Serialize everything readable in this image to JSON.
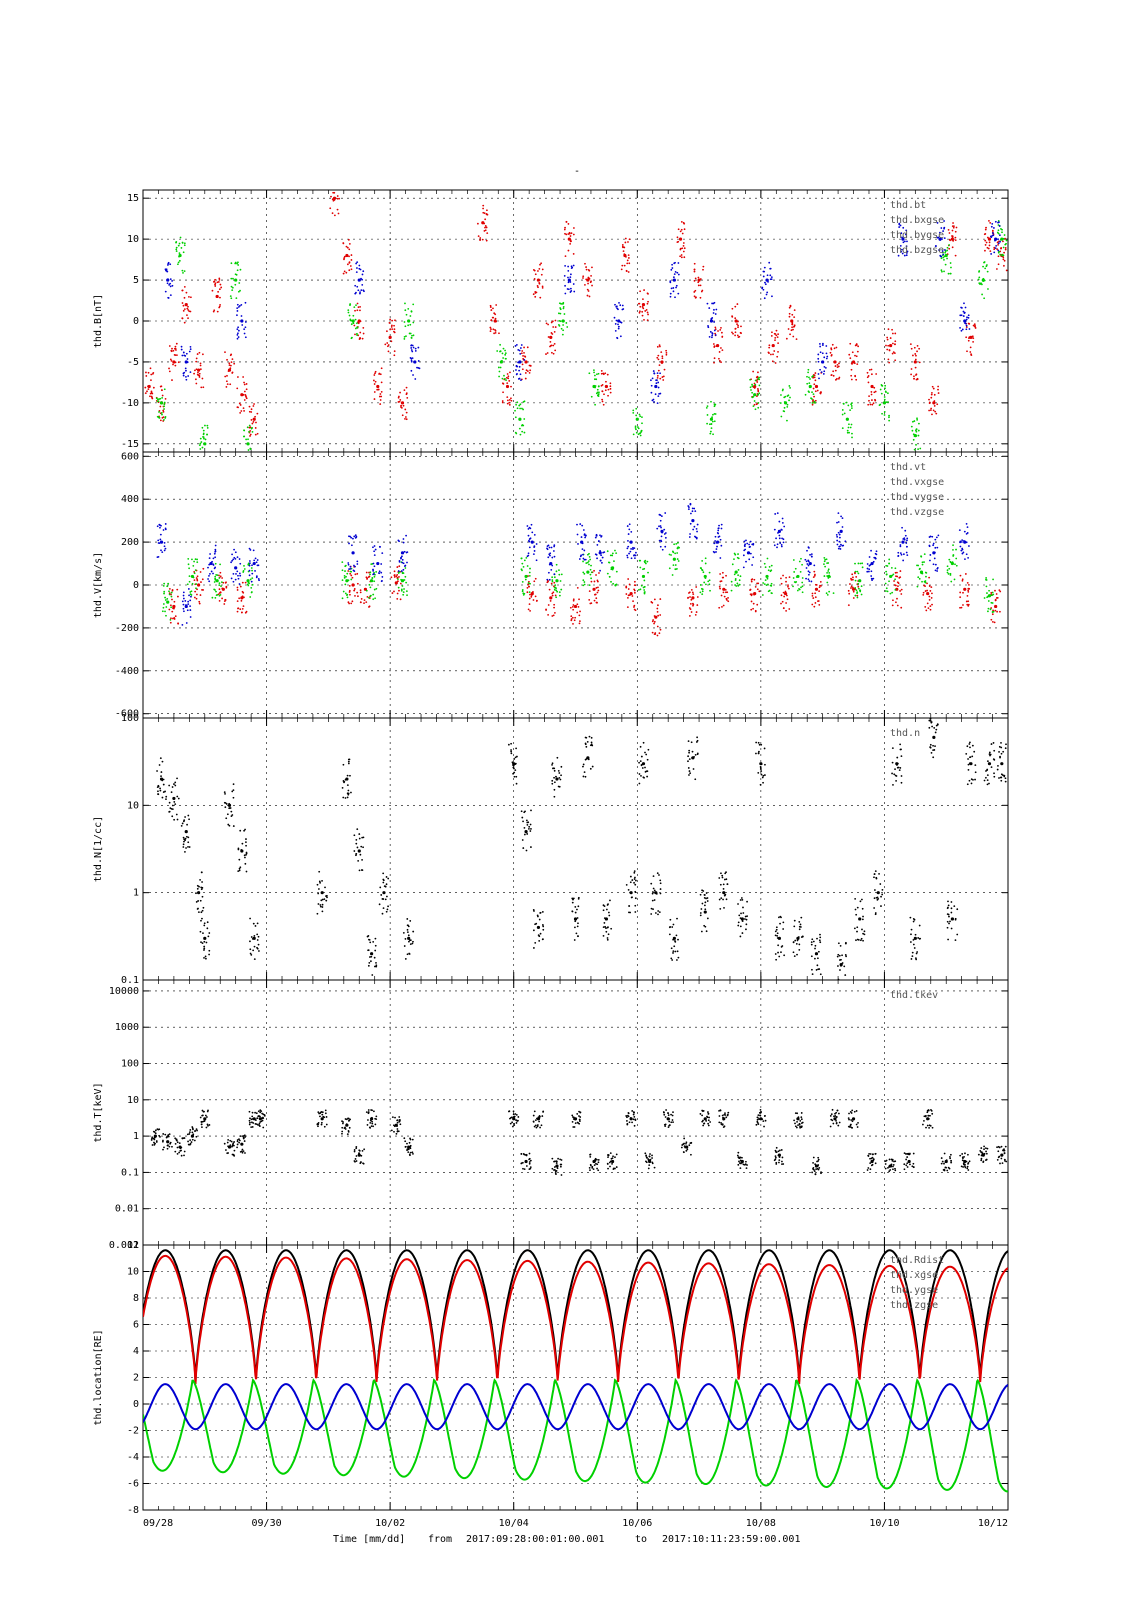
{
  "page": {
    "title": "-",
    "footer": {
      "label": "Time [mm/dd]",
      "from_label": "from",
      "start": "2017:09:28:00:01:00.001",
      "to_label": "to",
      "end": "2017:10:11:23:59:00.001"
    }
  },
  "colors": {
    "black": "#000000",
    "red": "#e00000",
    "green": "#00d000",
    "blue": "#0000d0",
    "grid": "#000000"
  },
  "chart_data": [
    {
      "type": "scatter",
      "ylabel": "thd.B[nT]",
      "ylim": [
        -16,
        16
      ],
      "yticks": [
        -15,
        -10,
        -5,
        0,
        5,
        10,
        15
      ],
      "ytick_labels": [
        "-15",
        "-10",
        "-5",
        "0",
        "5",
        "10",
        "15"
      ],
      "legend": [
        "thd.bt",
        "thd.bxgse",
        "thd.bygse",
        "thd.bzgse"
      ],
      "legend_position": "top-right",
      "series": [
        {
          "name": "thd.bxgse",
          "color": "red",
          "x": [
            0.1,
            0.3,
            0.5,
            0.7,
            0.9,
            1.2,
            1.4,
            1.6,
            1.8,
            3.1,
            3.3,
            3.5,
            3.8,
            4.0,
            4.2,
            5.5,
            5.7,
            5.9,
            6.2,
            6.4,
            6.6,
            6.9,
            7.2,
            7.5,
            7.8,
            8.1,
            8.4,
            8.7,
            9.0,
            9.3,
            9.6,
            9.9,
            10.2,
            10.5,
            10.9,
            11.2,
            11.5,
            11.8,
            12.1,
            12.5,
            12.8,
            13.1,
            13.4,
            13.7,
            13.9
          ],
          "y": [
            -8,
            -10,
            -5,
            2,
            -6,
            3,
            -6,
            -9,
            -12,
            15,
            8,
            0,
            -8,
            -2,
            -10,
            12,
            0,
            -8,
            -5,
            5,
            -2,
            10,
            5,
            -8,
            8,
            2,
            -5,
            10,
            5,
            -3,
            0,
            -8,
            -3,
            0,
            -8,
            -5,
            -5,
            -8,
            -3,
            -5,
            -10,
            10,
            -2,
            10,
            8
          ]
        },
        {
          "name": "thd.bygse",
          "color": "green",
          "x": [
            0.3,
            0.6,
            1.0,
            1.5,
            1.7,
            3.4,
            4.3,
            5.8,
            6.1,
            6.8,
            7.3,
            8.0,
            9.2,
            9.9,
            10.4,
            10.8,
            11.4,
            12.0,
            12.5,
            13.0,
            13.6,
            13.9
          ],
          "y": [
            -10,
            8,
            -15,
            5,
            -15,
            0,
            0,
            -5,
            -12,
            0,
            -8,
            -12,
            -12,
            -9,
            -10,
            -8,
            -12,
            -10,
            -14,
            8,
            5,
            10
          ]
        },
        {
          "name": "thd.bzgse",
          "color": "blue",
          "x": [
            0.4,
            0.7,
            1.6,
            3.5,
            4.4,
            6.1,
            6.9,
            7.7,
            8.3,
            8.6,
            9.2,
            10.1,
            11.0,
            12.3,
            12.9,
            13.3,
            13.8
          ],
          "y": [
            5,
            -5,
            0,
            5,
            -5,
            -5,
            5,
            0,
            -8,
            5,
            0,
            5,
            -5,
            10,
            10,
            0,
            10
          ]
        }
      ]
    },
    {
      "type": "scatter",
      "ylabel": "thd.V[km/s]",
      "ylim": [
        -620,
        620
      ],
      "yticks": [
        -600,
        -400,
        -200,
        0,
        200,
        400,
        600
      ],
      "ytick_labels": [
        "-600",
        "-400",
        "-200",
        "0",
        "200",
        "400",
        "600"
      ],
      "legend": [
        "thd.vt",
        "thd.vxgse",
        "thd.vygse",
        "thd.vzgse"
      ],
      "legend_position": "top-right",
      "series": [
        {
          "name": "thd.vxgse",
          "color": "red",
          "x": [
            0.5,
            0.9,
            1.3,
            1.6,
            3.4,
            3.6,
            4.1,
            6.3,
            6.6,
            7.0,
            7.3,
            7.9,
            8.3,
            8.9,
            9.4,
            9.9,
            10.4,
            10.9,
            11.5,
            12.2,
            12.7,
            13.3,
            13.8
          ],
          "y": [
            -100,
            0,
            -20,
            -60,
            0,
            -20,
            10,
            -40,
            -60,
            -100,
            -20,
            -40,
            -150,
            -60,
            -20,
            -40,
            -40,
            -20,
            -20,
            -20,
            -40,
            -20,
            -100
          ]
        },
        {
          "name": "thd.vygse",
          "color": "green",
          "x": [
            0.4,
            0.8,
            1.2,
            1.7,
            3.3,
            3.7,
            4.2,
            6.2,
            6.7,
            7.2,
            7.6,
            8.1,
            8.6,
            9.1,
            9.6,
            10.1,
            10.6,
            11.1,
            11.6,
            12.1,
            12.6,
            13.1,
            13.7
          ],
          "y": [
            -80,
            40,
            20,
            20,
            20,
            20,
            20,
            40,
            20,
            60,
            80,
            40,
            120,
            40,
            60,
            40,
            40,
            40,
            20,
            40,
            60,
            100,
            -50
          ]
        },
        {
          "name": "thd.vzgse",
          "color": "blue",
          "x": [
            0.3,
            0.7,
            1.1,
            1.5,
            1.8,
            3.4,
            3.8,
            4.2,
            6.3,
            6.6,
            7.1,
            7.4,
            7.9,
            8.4,
            8.9,
            9.3,
            9.8,
            10.3,
            10.8,
            11.3,
            11.8,
            12.3,
            12.8,
            13.3
          ],
          "y": [
            200,
            -100,
            100,
            80,
            100,
            150,
            100,
            150,
            200,
            100,
            200,
            150,
            200,
            250,
            300,
            200,
            150,
            250,
            100,
            250,
            100,
            200,
            150,
            200
          ]
        }
      ]
    },
    {
      "type": "scatter",
      "ylabel": "thd.N[1/cc]",
      "yscale": "log",
      "ylim": [
        0.1,
        100
      ],
      "yticks": [
        0.1,
        1,
        10,
        100
      ],
      "ytick_labels": [
        "0.1",
        "1",
        "10",
        "100"
      ],
      "legend": [
        "thd.n"
      ],
      "legend_position": "top-right",
      "series": [
        {
          "name": "thd.n",
          "color": "black",
          "x": [
            0.3,
            0.5,
            0.7,
            0.9,
            1.0,
            1.4,
            1.6,
            1.8,
            2.9,
            3.3,
            3.5,
            3.7,
            3.9,
            4.3,
            6.0,
            6.2,
            6.4,
            6.7,
            7.0,
            7.2,
            7.5,
            7.9,
            8.1,
            8.3,
            8.6,
            8.9,
            9.1,
            9.4,
            9.7,
            10.0,
            10.3,
            10.6,
            10.9,
            11.3,
            11.6,
            11.9,
            12.2,
            12.5,
            12.8,
            13.1,
            13.4,
            13.7,
            13.9
          ],
          "y": [
            20,
            12,
            5,
            1,
            0.3,
            10,
            3,
            0.3,
            1,
            20,
            3,
            0.2,
            1,
            0.3,
            30,
            5,
            0.4,
            20,
            0.5,
            35,
            0.5,
            1,
            30,
            1,
            0.3,
            35,
            0.6,
            1,
            0.5,
            30,
            0.3,
            0.3,
            0.2,
            0.15,
            0.5,
            1,
            30,
            0.3,
            60,
            0.5,
            30,
            30,
            30
          ]
        }
      ]
    },
    {
      "type": "scatter",
      "ylabel": "thd.T[keV]",
      "yscale": "log",
      "ylim": [
        0.001,
        20000
      ],
      "yticks": [
        0.001,
        0.01,
        0.1,
        1,
        10,
        100,
        1000,
        10000
      ],
      "ytick_labels": [
        "0.001",
        "0.01",
        "0.1",
        "1",
        "10",
        "100",
        "1000",
        "10000"
      ],
      "legend": [
        "thd.tkev"
      ],
      "legend_position": "top-right",
      "series": [
        {
          "name": "thd.tkev",
          "color": "black",
          "x": [
            0.2,
            0.4,
            0.6,
            0.8,
            1.0,
            1.4,
            1.6,
            1.8,
            1.9,
            2.9,
            3.3,
            3.5,
            3.7,
            4.1,
            4.3,
            6.0,
            6.2,
            6.4,
            6.7,
            7.0,
            7.3,
            7.6,
            7.9,
            8.2,
            8.5,
            8.8,
            9.1,
            9.4,
            9.7,
            10.0,
            10.3,
            10.6,
            10.9,
            11.2,
            11.5,
            11.8,
            12.1,
            12.4,
            12.7,
            13.0,
            13.3,
            13.6,
            13.9
          ],
          "y": [
            1,
            0.7,
            0.5,
            1,
            3,
            0.5,
            0.6,
            3,
            3,
            3,
            2,
            0.3,
            3,
            2,
            0.5,
            3,
            0.2,
            3,
            0.15,
            3,
            0.2,
            0.2,
            3,
            0.2,
            3,
            0.5,
            3,
            3,
            0.2,
            3,
            0.3,
            3,
            0.15,
            3,
            3,
            0.2,
            0.15,
            0.2,
            3,
            0.2,
            0.2,
            0.3,
            0.3
          ]
        }
      ]
    },
    {
      "type": "line",
      "ylabel": "thd.location[RE]",
      "ylim": [
        -8,
        12
      ],
      "yticks": [
        -8,
        -6,
        -4,
        -2,
        0,
        2,
        4,
        6,
        8,
        10,
        12
      ],
      "ytick_labels": [
        "-8",
        "-6",
        "-4",
        "-2",
        "0",
        "2",
        "4",
        "6",
        "8",
        "10",
        "12"
      ],
      "legend": [
        "thd.Rdist",
        "thd.xgse",
        "thd.ygse",
        "thd.zgse"
      ],
      "legend_position": "top-right",
      "orbit_period_days": 0.977,
      "series": [
        {
          "name": "thd.Rdist",
          "color": "black",
          "peak": 11.6,
          "trough": 1.7
        },
        {
          "name": "thd.xgse",
          "color": "red",
          "peak_start": 11.2,
          "peak_end": 10.3,
          "trough": 1.5
        },
        {
          "name": "thd.ygse",
          "color": "green",
          "min_start": -5.0,
          "min_end": -6.6,
          "max": 1.8
        },
        {
          "name": "thd.zgse",
          "color": "blue",
          "min": -1.9,
          "max": 1.5
        }
      ]
    }
  ],
  "xaxis": {
    "ticks": [
      0,
      2,
      4,
      6,
      8,
      10,
      12,
      14
    ],
    "tick_labels": [
      "09/28",
      "09/30",
      "10/02",
      "10/04",
      "10/06",
      "10/08",
      "10/10",
      "10/12"
    ],
    "range": [
      0,
      14
    ]
  }
}
